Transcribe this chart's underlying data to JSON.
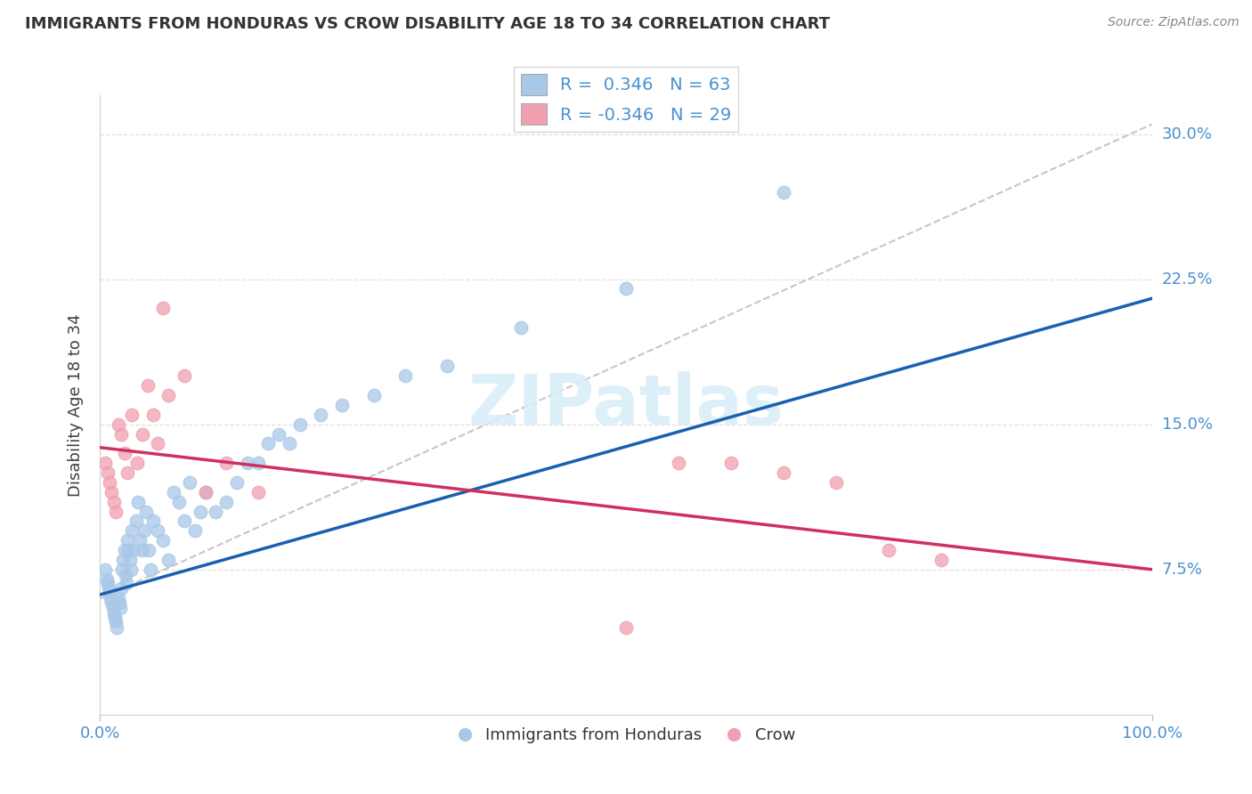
{
  "title": "IMMIGRANTS FROM HONDURAS VS CROW DISABILITY AGE 18 TO 34 CORRELATION CHART",
  "source": "Source: ZipAtlas.com",
  "ylabel": "Disability Age 18 to 34",
  "xlim": [
    0,
    1.0
  ],
  "ylim": [
    0,
    0.32
  ],
  "ytick_labels": [
    "7.5%",
    "15.0%",
    "22.5%",
    "30.0%"
  ],
  "ytick_vals": [
    0.075,
    0.15,
    0.225,
    0.3
  ],
  "legend_blue_r": "0.346",
  "legend_blue_n": "63",
  "legend_pink_r": "-0.346",
  "legend_pink_n": "29",
  "legend_label_blue": "Immigrants from Honduras",
  "legend_label_pink": "Crow",
  "blue_color": "#a8c8e8",
  "pink_color": "#f0a0b0",
  "line_blue_color": "#1a5fb0",
  "line_pink_color": "#d03060",
  "dashed_line_color": "#b8b8b8",
  "blue_x": [
    0.005,
    0.006,
    0.007,
    0.008,
    0.009,
    0.01,
    0.011,
    0.012,
    0.013,
    0.014,
    0.015,
    0.016,
    0.017,
    0.018,
    0.019,
    0.02,
    0.021,
    0.022,
    0.023,
    0.024,
    0.025,
    0.026,
    0.027,
    0.028,
    0.029,
    0.03,
    0.032,
    0.034,
    0.036,
    0.038,
    0.04,
    0.042,
    0.044,
    0.046,
    0.048,
    0.05,
    0.055,
    0.06,
    0.065,
    0.07,
    0.075,
    0.08,
    0.085,
    0.09,
    0.095,
    0.1,
    0.11,
    0.12,
    0.13,
    0.14,
    0.15,
    0.16,
    0.17,
    0.18,
    0.19,
    0.21,
    0.23,
    0.26,
    0.29,
    0.33,
    0.4,
    0.5,
    0.65
  ],
  "blue_y": [
    0.075,
    0.07,
    0.068,
    0.065,
    0.063,
    0.06,
    0.058,
    0.055,
    0.052,
    0.05,
    0.048,
    0.045,
    0.06,
    0.058,
    0.055,
    0.065,
    0.075,
    0.08,
    0.085,
    0.072,
    0.068,
    0.09,
    0.085,
    0.08,
    0.075,
    0.095,
    0.085,
    0.1,
    0.11,
    0.09,
    0.085,
    0.095,
    0.105,
    0.085,
    0.075,
    0.1,
    0.095,
    0.09,
    0.08,
    0.115,
    0.11,
    0.1,
    0.12,
    0.095,
    0.105,
    0.115,
    0.105,
    0.11,
    0.12,
    0.13,
    0.13,
    0.14,
    0.145,
    0.14,
    0.15,
    0.155,
    0.16,
    0.165,
    0.175,
    0.18,
    0.2,
    0.22,
    0.27
  ],
  "pink_x": [
    0.005,
    0.007,
    0.009,
    0.011,
    0.013,
    0.015,
    0.017,
    0.02,
    0.023,
    0.026,
    0.03,
    0.035,
    0.04,
    0.045,
    0.05,
    0.055,
    0.06,
    0.065,
    0.08,
    0.1,
    0.12,
    0.15,
    0.5,
    0.55,
    0.6,
    0.65,
    0.7,
    0.75,
    0.8
  ],
  "pink_y": [
    0.13,
    0.125,
    0.12,
    0.115,
    0.11,
    0.105,
    0.15,
    0.145,
    0.135,
    0.125,
    0.155,
    0.13,
    0.145,
    0.17,
    0.155,
    0.14,
    0.21,
    0.165,
    0.175,
    0.115,
    0.13,
    0.115,
    0.045,
    0.13,
    0.13,
    0.125,
    0.12,
    0.085,
    0.08
  ],
  "blue_trend": [
    0.0,
    1.0,
    0.062,
    0.215
  ],
  "pink_trend": [
    0.0,
    1.0,
    0.138,
    0.075
  ],
  "dashed_trend": [
    0.0,
    1.0,
    0.06,
    0.305
  ]
}
